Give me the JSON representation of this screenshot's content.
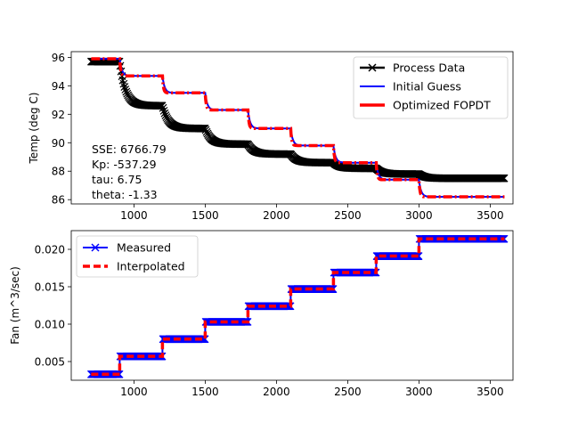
{
  "chart_data": [
    {
      "type": "line",
      "title": "",
      "xlabel": "",
      "ylabel": "Temp (deg C)",
      "xlim": [
        560,
        3660
      ],
      "ylim": [
        85.7,
        96.4
      ],
      "xticks": [
        1000,
        1500,
        2000,
        2500,
        3000,
        3500
      ],
      "yticks": [
        86,
        88,
        90,
        92,
        94,
        96
      ],
      "xtick_labels": [
        "1000",
        "1500",
        "2000",
        "2500",
        "3000",
        "3500"
      ],
      "ytick_labels": [
        "86",
        "88",
        "90",
        "92",
        "94",
        "96"
      ],
      "legend": [
        "Process Data",
        "Initial Guess",
        "Optimized FOPDT"
      ],
      "legend_position": "top-right",
      "annotation": [
        "SSE: 6766.79",
        "Kp: -537.29",
        "tau: 6.75",
        "theta: -1.33"
      ],
      "series": [
        {
          "name": "Process Data",
          "color": "#000000",
          "marker": "x",
          "step_times": [
            700,
            900,
            1200,
            1500,
            1800,
            2100,
            2400,
            2700,
            3000
          ],
          "step_levels": [
            95.7,
            92.6,
            91.0,
            89.9,
            89.2,
            88.6,
            88.2,
            87.8,
            87.5
          ],
          "time_constant": 40,
          "end": 3600
        },
        {
          "name": "Initial Guess",
          "color": "#0000ff",
          "style": "solid",
          "step_times": [
            700,
            900,
            1200,
            1500,
            1800,
            2100,
            2400,
            2700,
            3000
          ],
          "step_levels": [
            95.9,
            94.7,
            93.5,
            92.3,
            91.0,
            89.8,
            88.6,
            87.4,
            86.2
          ],
          "time_constant": 15,
          "end": 3600
        },
        {
          "name": "Optimized FOPDT",
          "color": "#ff0000",
          "style": "dash-dot",
          "step_times": [
            700,
            900,
            1200,
            1500,
            1800,
            2100,
            2400,
            2700,
            3000
          ],
          "step_levels": [
            95.9,
            94.7,
            93.5,
            92.3,
            91.0,
            89.8,
            88.6,
            87.4,
            86.2
          ],
          "time_constant": 7,
          "end": 3600
        }
      ]
    },
    {
      "type": "line",
      "title": "",
      "xlabel": "",
      "ylabel": "Fan (m^3/sec)",
      "xlim": [
        560,
        3660
      ],
      "ylim": [
        0.0025,
        0.0225
      ],
      "xticks": [
        1000,
        1500,
        2000,
        2500,
        3000,
        3500
      ],
      "yticks": [
        0.005,
        0.01,
        0.015,
        0.02
      ],
      "xtick_labels": [
        "1000",
        "1500",
        "2000",
        "2500",
        "3000",
        "3500"
      ],
      "ytick_labels": [
        "0.005",
        "0.010",
        "0.015",
        "0.020"
      ],
      "legend": [
        "Measured",
        "Interpolated"
      ],
      "legend_position": "top-left",
      "series": [
        {
          "name": "Measured",
          "color": "#0000ff",
          "marker": "x",
          "step_times": [
            700,
            900,
            1200,
            1500,
            1800,
            2100,
            2400,
            2700,
            3000
          ],
          "step_levels": [
            0.0033,
            0.0057,
            0.008,
            0.0103,
            0.0124,
            0.0147,
            0.0169,
            0.0191,
            0.0214
          ],
          "end": 3600
        },
        {
          "name": "Interpolated",
          "color": "#ff0000",
          "style": "dashed",
          "step_times": [
            700,
            900,
            1200,
            1500,
            1800,
            2100,
            2400,
            2700,
            3000
          ],
          "step_levels": [
            0.0033,
            0.0057,
            0.008,
            0.0103,
            0.0124,
            0.0147,
            0.0169,
            0.0191,
            0.0214
          ],
          "end": 3600
        }
      ]
    }
  ]
}
